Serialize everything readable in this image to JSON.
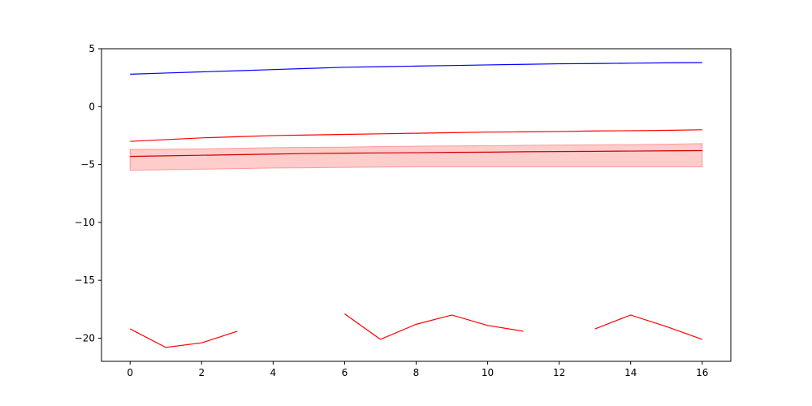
{
  "chart_data": {
    "type": "line",
    "title": "",
    "xlabel": "",
    "ylabel": "",
    "xlim": [
      -0.8,
      16.8
    ],
    "ylim": [
      -22,
      5
    ],
    "xticks": [
      0,
      2,
      4,
      6,
      8,
      10,
      12,
      14,
      16
    ],
    "yticks": [
      5,
      0,
      -5,
      -10,
      -15,
      -20
    ],
    "xtick_labels": [
      "0",
      "2",
      "4",
      "6",
      "8",
      "10",
      "12",
      "14",
      "16"
    ],
    "ytick_labels": [
      "5",
      "0",
      "−5",
      "−10",
      "−15",
      "−20"
    ],
    "grid": false,
    "x": [
      0,
      1,
      2,
      3,
      4,
      5,
      6,
      7,
      8,
      9,
      10,
      11,
      12,
      13,
      14,
      15,
      16
    ],
    "series": [
      {
        "color": "#0000ff",
        "values": [
          2.8,
          2.9,
          3.0,
          3.1,
          3.2,
          3.3,
          3.4,
          3.45,
          3.5,
          3.55,
          3.6,
          3.65,
          3.7,
          3.72,
          3.75,
          3.78,
          3.8
        ]
      },
      {
        "color": "#ff0000",
        "values": [
          -3.0,
          -2.85,
          -2.7,
          -2.6,
          -2.5,
          -2.45,
          -2.4,
          -2.35,
          -2.3,
          -2.25,
          -2.2,
          -2.18,
          -2.15,
          -2.1,
          -2.08,
          -2.05,
          -2.0
        ]
      },
      {
        "color": "#cc0000",
        "values": [
          -4.3,
          -4.25,
          -4.2,
          -4.15,
          -4.1,
          -4.05,
          -4.02,
          -4.0,
          -3.98,
          -3.95,
          -3.93,
          -3.9,
          -3.88,
          -3.86,
          -3.84,
          -3.82,
          -3.8
        ]
      },
      {
        "color": "#ff0000",
        "values": [
          -19.2,
          -20.8,
          -20.4,
          -19.4,
          null,
          null,
          -17.9,
          -20.1,
          -18.8,
          -18.0,
          -18.9,
          -19.4,
          null,
          -19.2,
          -18.0,
          -19.0,
          -20.1
        ]
      }
    ],
    "band": {
      "color": "#ff9999",
      "lower": [
        -5.5,
        -5.45,
        -5.4,
        -5.35,
        -5.3,
        -5.28,
        -5.25,
        -5.22,
        -5.2,
        -5.2,
        -5.2,
        -5.2,
        -5.2,
        -5.2,
        -5.2,
        -5.2,
        -5.2
      ],
      "upper": [
        -3.7,
        -3.68,
        -3.65,
        -3.6,
        -3.55,
        -3.52,
        -3.5,
        -3.45,
        -3.42,
        -3.4,
        -3.38,
        -3.35,
        -3.32,
        -3.3,
        -3.28,
        -3.25,
        -3.2
      ]
    }
  }
}
